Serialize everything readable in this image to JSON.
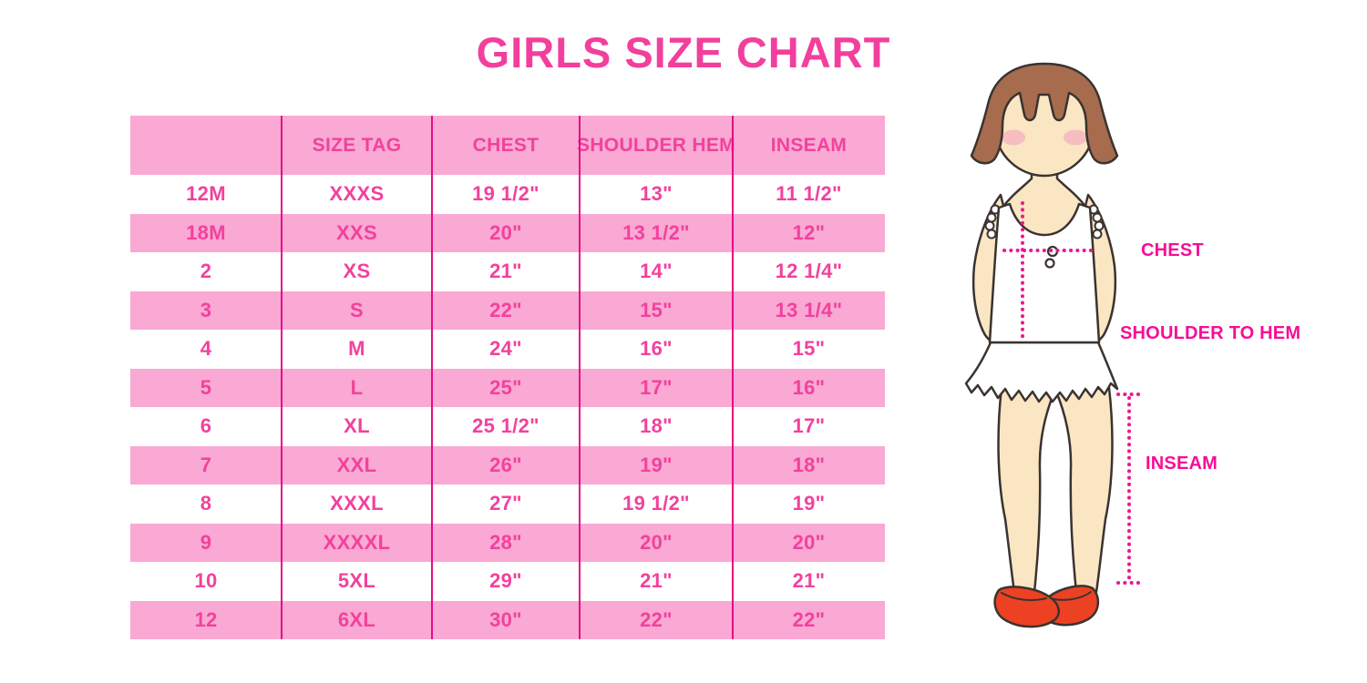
{
  "title": "GIRLS SIZE CHART",
  "chart_data": {
    "type": "table",
    "title": "GIRLS SIZE CHART",
    "columns": [
      "",
      "SIZE TAG",
      "CHEST",
      "SHOULDER HEM",
      "INSEAM"
    ],
    "rows": [
      [
        "12M",
        "XXXS",
        "19 1/2\"",
        "13\"",
        "11 1/2\""
      ],
      [
        "18M",
        "XXS",
        "20\"",
        "13 1/2\"",
        "12\""
      ],
      [
        "2",
        "XS",
        "21\"",
        "14\"",
        "12 1/4\""
      ],
      [
        "3",
        "S",
        "22\"",
        "15\"",
        "13 1/4\""
      ],
      [
        "4",
        "M",
        "24\"",
        "16\"",
        "15\""
      ],
      [
        "5",
        "L",
        "25\"",
        "17\"",
        "16\""
      ],
      [
        "6",
        "XL",
        "25 1/2\"",
        "18\"",
        "17\""
      ],
      [
        "7",
        "XXL",
        "26\"",
        "19\"",
        "18\""
      ],
      [
        "8",
        "XXXL",
        "27\"",
        "19 1/2\"",
        "19\""
      ],
      [
        "9",
        "XXXXL",
        "28\"",
        "20\"",
        "20\""
      ],
      [
        "10",
        "5XL",
        "29\"",
        "21\"",
        "21\""
      ],
      [
        "12",
        "6XL",
        "30\"",
        "22\"",
        "22\""
      ]
    ],
    "row_stripe_pattern": "white/pink alternating, header pink"
  },
  "diagram": {
    "chest_label": "CHEST",
    "shoulder_to_hem_label": "SHOULDER TO HEM",
    "inseam_label": "INSEAM"
  },
  "colors": {
    "title_pink": "#F23F9D",
    "table_row_pink": "#F9A9D3",
    "table_text_pink": "#F2419D",
    "divider_magenta": "#E40E86",
    "label_magenta": "#F70D97",
    "dotted_line_magenta": "#EC1890",
    "hair_brown": "#A76C4E",
    "skin": "#FBE6C3",
    "blush": "#F5B6C1",
    "dress_white": "#FFFFFF",
    "shoe_red": "#ED4124",
    "outline_dark": "#3A3330"
  }
}
